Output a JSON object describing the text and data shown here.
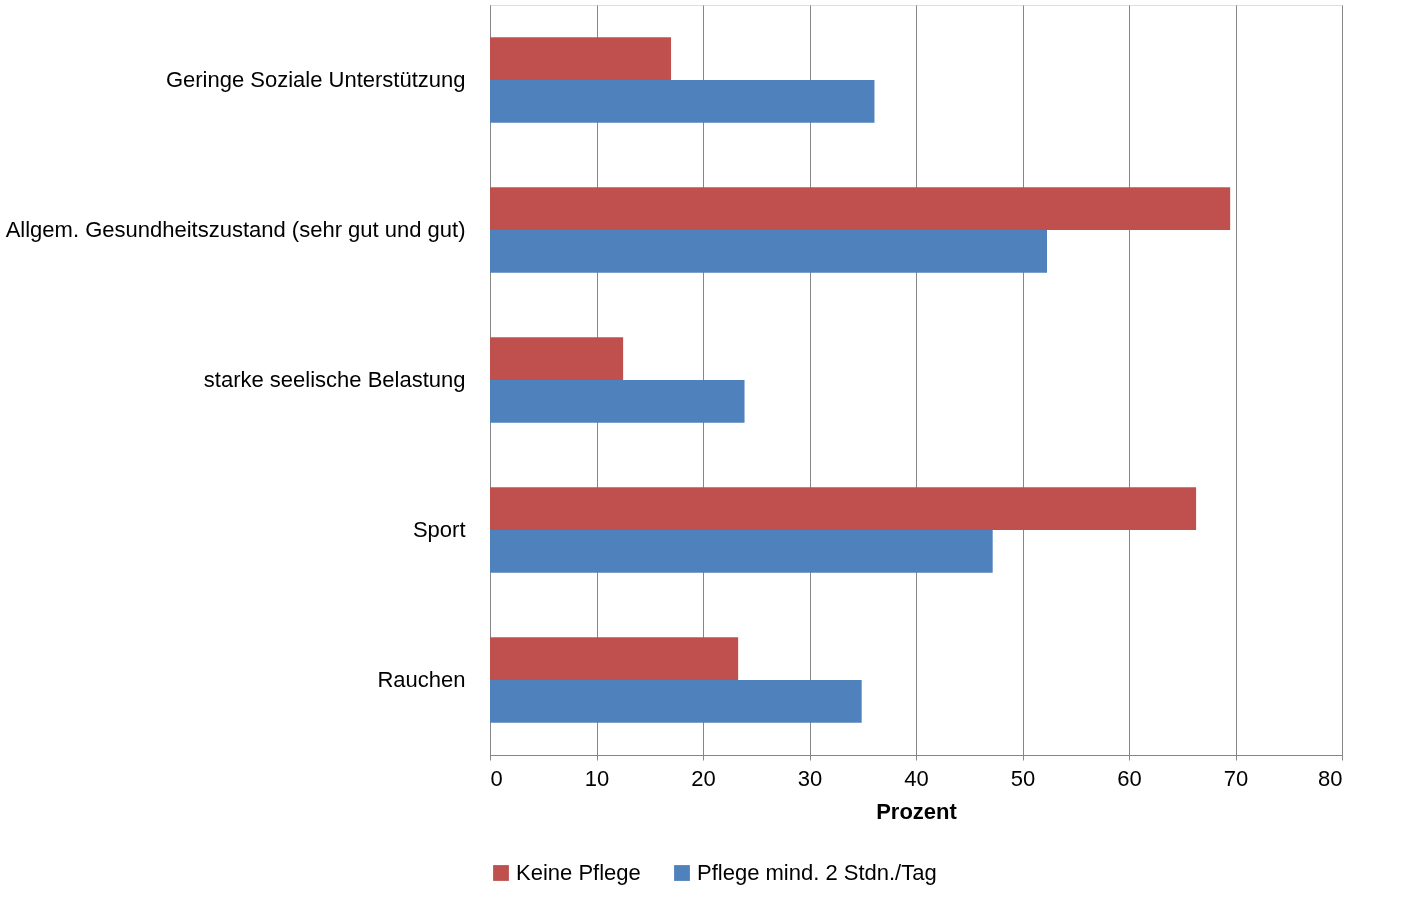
{
  "chart_data": {
    "type": "bar",
    "orientation": "horizontal",
    "xlabel": "Prozent",
    "categories": [
      "Geringe Soziale Unterstützung",
      "Allgem. Gesundheitszustand (sehr gut und gut)",
      "starke seelische Belastung",
      "Sport",
      "Rauchen"
    ],
    "series": [
      {
        "name": "Keine Pflege",
        "color": "#c0504d",
        "values": [
          17.0,
          69.5,
          12.5,
          66.3,
          23.3
        ]
      },
      {
        "name": "Pflege mind. 2 Stdn./Tag",
        "color": "#4f81bd",
        "values": [
          36.1,
          52.3,
          23.9,
          47.2,
          34.9
        ]
      }
    ],
    "xlim": [
      0,
      80
    ],
    "xticks": [
      0,
      10,
      20,
      30,
      40,
      50,
      60,
      70,
      80
    ],
    "grid": "x",
    "legend": "bottom"
  }
}
